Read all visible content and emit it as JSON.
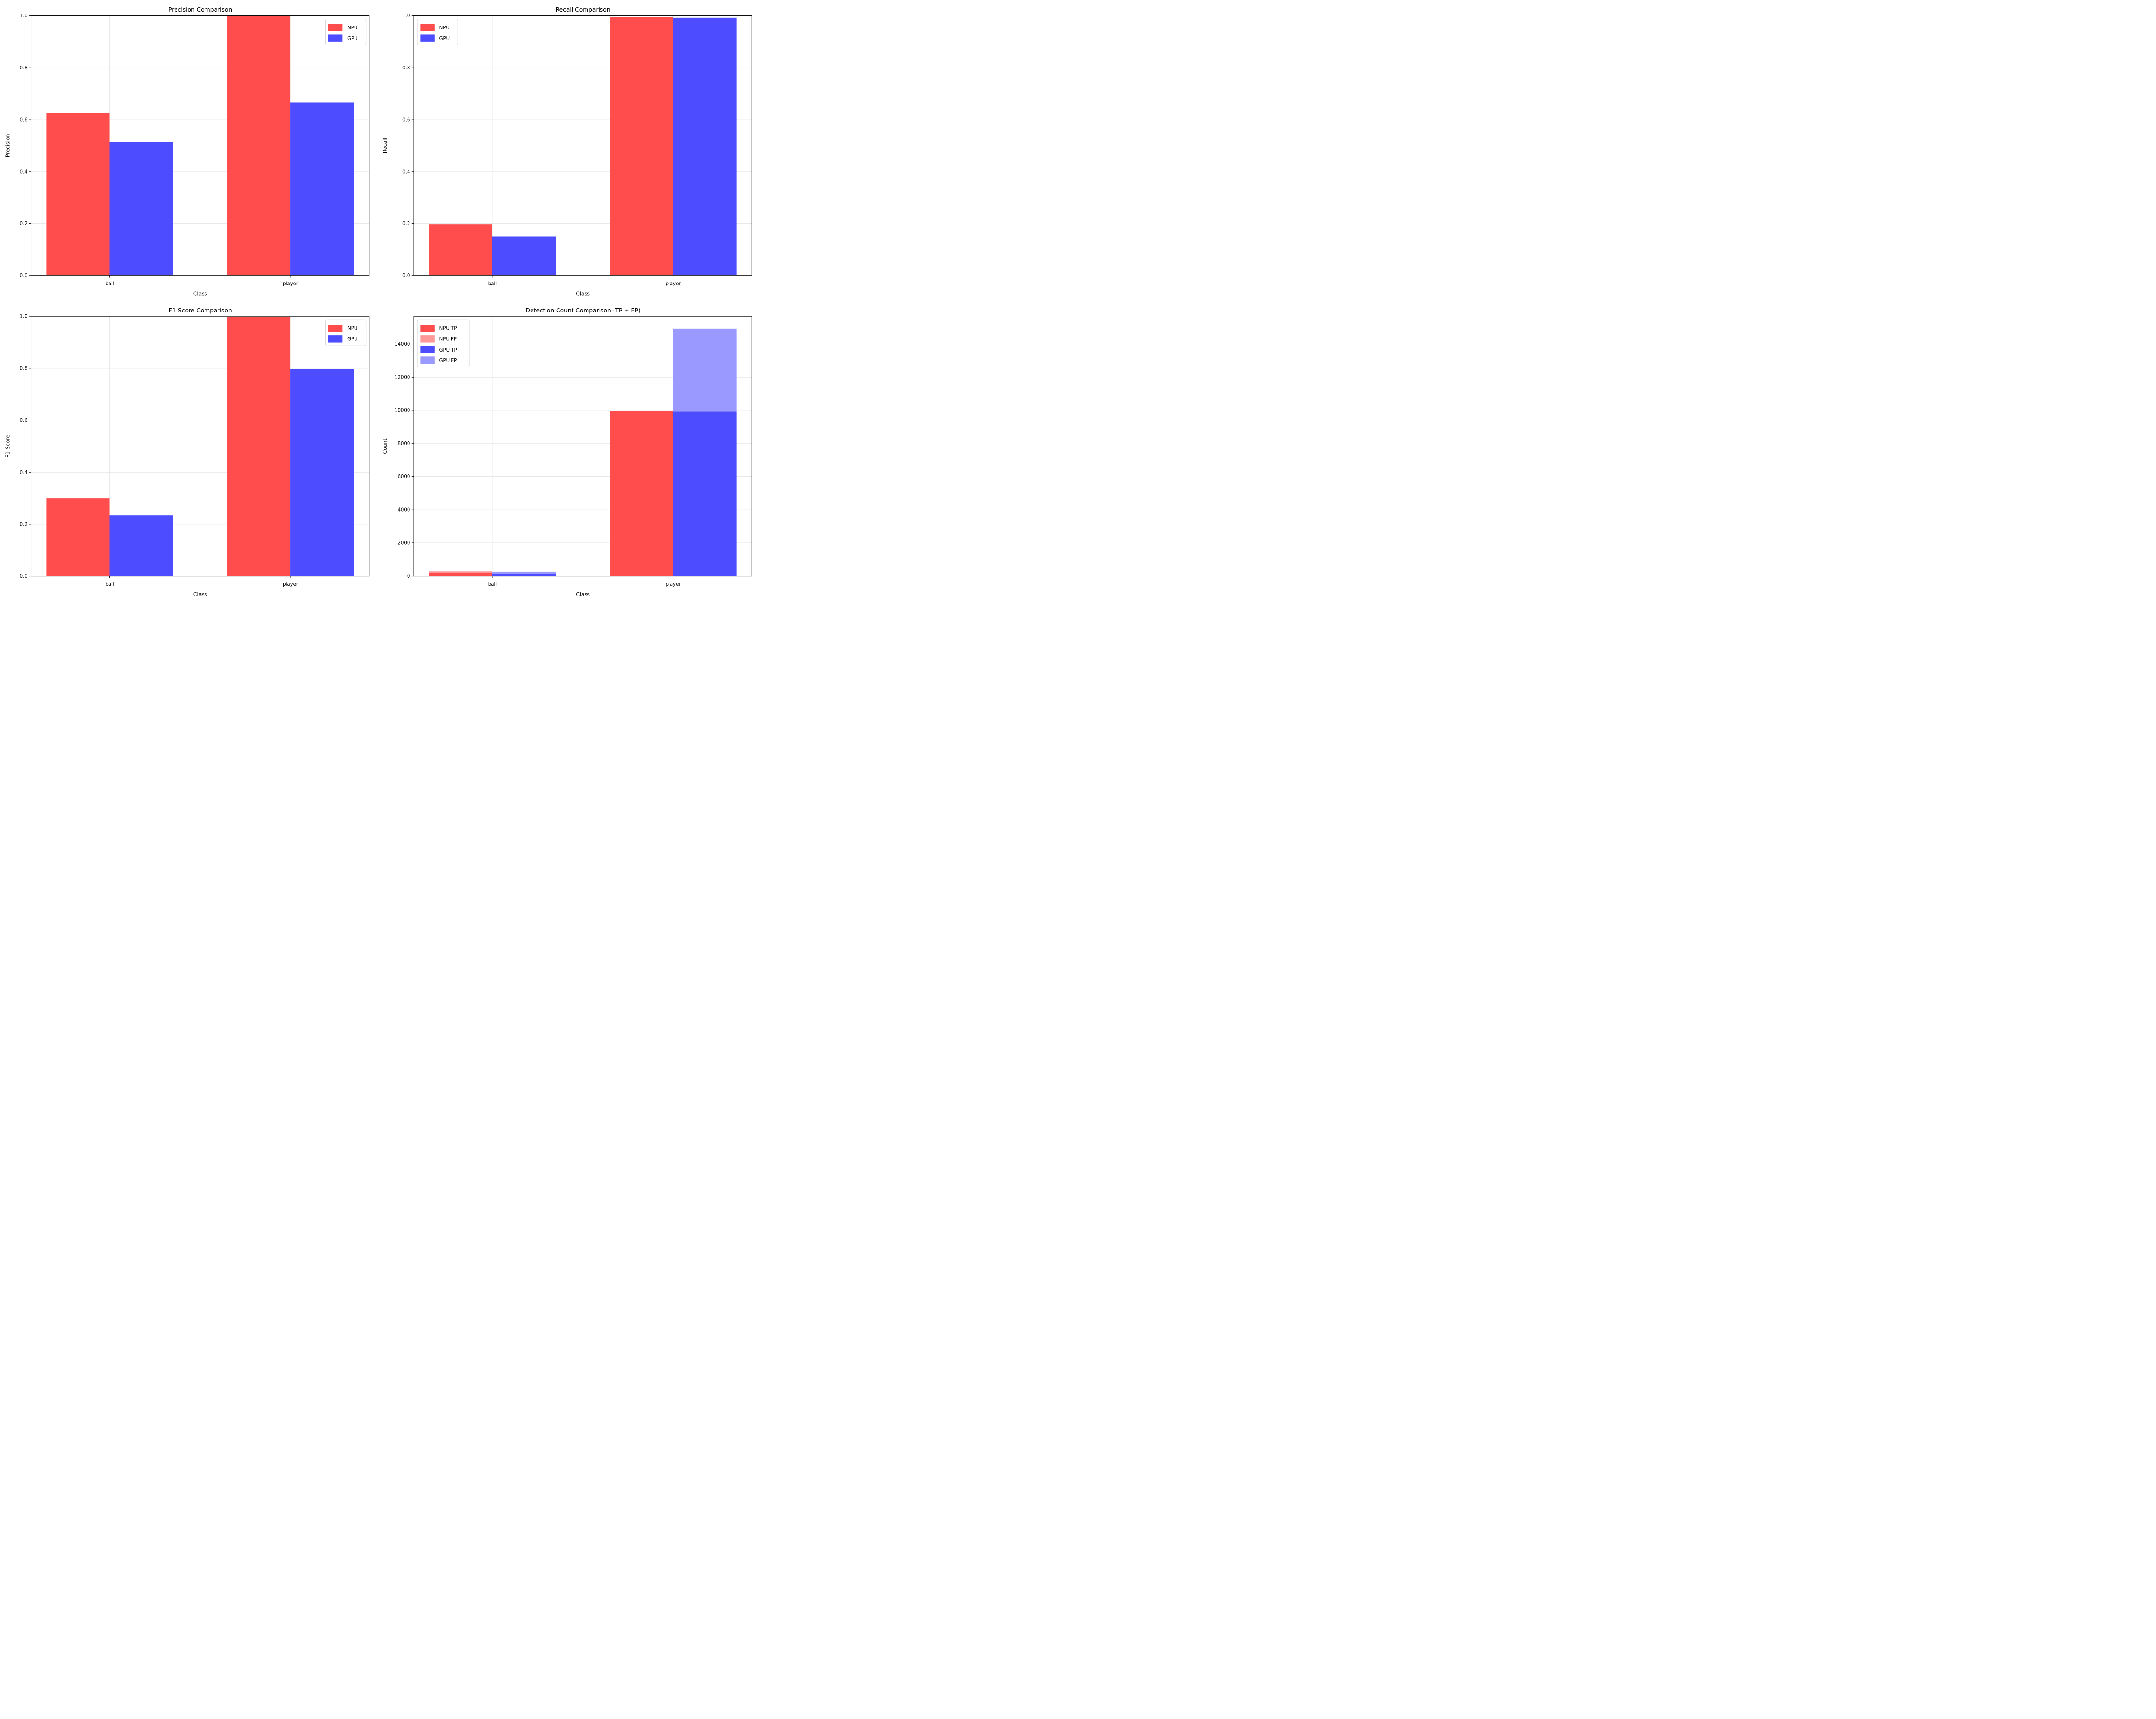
{
  "figure": {
    "subplots": 4,
    "arrangement": "2x2 grid"
  },
  "colors": {
    "npu": "#ff4d4d",
    "gpu": "#4d4dff",
    "npu_fp": "#ff9999",
    "gpu_fp": "#9999ff"
  },
  "chart_data": [
    {
      "id": "precision",
      "type": "bar",
      "title": "Precision Comparison",
      "xlabel": "Class",
      "ylabel": "Precision",
      "categories": [
        "ball",
        "player"
      ],
      "series": [
        {
          "name": "NPU",
          "color_key": "npu",
          "values": [
            0.626,
            1.0
          ]
        },
        {
          "name": "GPU",
          "color_key": "gpu",
          "values": [
            0.514,
            0.666
          ]
        }
      ],
      "ylim": [
        0,
        1.0
      ],
      "yticks": [
        0.0,
        0.2,
        0.4,
        0.6,
        0.8,
        1.0
      ],
      "ytick_labels": [
        "0.0",
        "0.2",
        "0.4",
        "0.6",
        "0.8",
        "1.0"
      ],
      "grid": true,
      "legend": {
        "position": "top-right",
        "entries": [
          "NPU",
          "GPU"
        ]
      }
    },
    {
      "id": "recall",
      "type": "bar",
      "title": "Recall Comparison",
      "xlabel": "Class",
      "ylabel": "Recall",
      "categories": [
        "ball",
        "player"
      ],
      "series": [
        {
          "name": "NPU",
          "color_key": "npu",
          "values": [
            0.197,
            0.994
          ]
        },
        {
          "name": "GPU",
          "color_key": "gpu",
          "values": [
            0.15,
            0.992
          ]
        }
      ],
      "ylim": [
        0,
        1.0
      ],
      "yticks": [
        0.0,
        0.2,
        0.4,
        0.6,
        0.8,
        1.0
      ],
      "ytick_labels": [
        "0.0",
        "0.2",
        "0.4",
        "0.6",
        "0.8",
        "1.0"
      ],
      "grid": true,
      "legend": {
        "position": "top-left",
        "entries": [
          "NPU",
          "GPU"
        ]
      }
    },
    {
      "id": "f1",
      "type": "bar",
      "title": "F1-Score Comparison",
      "xlabel": "Class",
      "ylabel": "F1-Score",
      "categories": [
        "ball",
        "player"
      ],
      "series": [
        {
          "name": "NPU",
          "color_key": "npu",
          "values": [
            0.3,
            0.997
          ]
        },
        {
          "name": "GPU",
          "color_key": "gpu",
          "values": [
            0.233,
            0.797
          ]
        }
      ],
      "ylim": [
        0,
        1.0
      ],
      "yticks": [
        0.0,
        0.2,
        0.4,
        0.6,
        0.8,
        1.0
      ],
      "ytick_labels": [
        "0.0",
        "0.2",
        "0.4",
        "0.6",
        "0.8",
        "1.0"
      ],
      "grid": true,
      "legend": {
        "position": "top-right",
        "entries": [
          "NPU",
          "GPU"
        ]
      }
    },
    {
      "id": "count",
      "type": "bar",
      "stacked": true,
      "title": "Detection Count Comparison (TP + FP)",
      "xlabel": "Class",
      "ylabel": "Count",
      "categories": [
        "ball",
        "player"
      ],
      "series": [
        {
          "name": "NPU TP",
          "color_key": "npu",
          "group": "NPU",
          "values": [
            173,
            9956
          ]
        },
        {
          "name": "NPU FP",
          "color_key": "npu_fp",
          "group": "NPU",
          "values": [
            101,
            10
          ]
        },
        {
          "name": "GPU TP",
          "color_key": "gpu",
          "group": "GPU",
          "values": [
            132,
            9930
          ]
        },
        {
          "name": "GPU FP",
          "color_key": "gpu_fp",
          "group": "GPU",
          "values": [
            122,
            4992
          ]
        }
      ],
      "ylim": [
        0,
        15668
      ],
      "yticks": [
        0,
        2000,
        4000,
        6000,
        8000,
        10000,
        12000,
        14000
      ],
      "ytick_labels": [
        "0",
        "2000",
        "4000",
        "6000",
        "8000",
        "10000",
        "12000",
        "14000"
      ],
      "grid": true,
      "legend": {
        "position": "top-left",
        "entries": [
          "NPU TP",
          "NPU FP",
          "GPU TP",
          "GPU FP"
        ]
      }
    }
  ]
}
